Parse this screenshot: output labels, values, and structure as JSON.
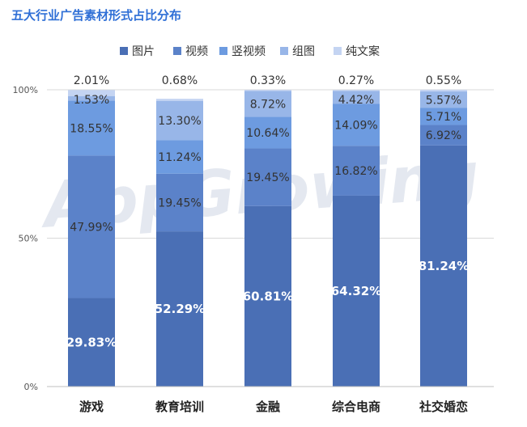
{
  "title": "五大行业广告素材形式占比分布",
  "watermark": "AppGrowing",
  "chart_data": {
    "type": "bar",
    "stacked": true,
    "categories": [
      "游戏",
      "教育培训",
      "金融",
      "综合电商",
      "社交婚恋"
    ],
    "series": [
      {
        "name": "图片",
        "color": "#4a6fb5",
        "values": [
          29.83,
          52.29,
          60.81,
          64.32,
          81.24
        ],
        "labels": [
          "29.83%",
          "52.29%",
          "60.81%",
          "64.32%",
          "81.24%"
        ]
      },
      {
        "name": "视频",
        "color": "#5b82c9",
        "values": [
          47.99,
          19.45,
          19.45,
          16.82,
          6.92
        ],
        "labels": [
          "47.99%",
          "19.45%",
          "19.45%",
          "16.82%",
          "6.92%"
        ]
      },
      {
        "name": "竖视频",
        "color": "#6d9be0",
        "values": [
          18.55,
          11.24,
          10.64,
          14.09,
          5.71
        ],
        "labels": [
          "18.55%",
          "11.24%",
          "10.64%",
          "14.09%",
          "5.71%"
        ]
      },
      {
        "name": "组图",
        "color": "#98b6e8",
        "values": [
          1.53,
          13.3,
          8.72,
          4.42,
          5.57
        ],
        "labels": [
          "1.53%",
          "13.30%",
          "8.72%",
          "4.42%",
          "5.57%"
        ]
      },
      {
        "name": "纯文案",
        "color": "#c4d4f2",
        "values": [
          2.01,
          0.68,
          0.33,
          0.27,
          0.55
        ],
        "labels": [
          "2.01%",
          "0.68%",
          "0.33%",
          "0.27%",
          "0.55%"
        ]
      }
    ],
    "ylim": [
      0,
      100
    ],
    "yticks": [
      "0%",
      "50%",
      "100%"
    ],
    "grid": true,
    "legend": "top"
  }
}
